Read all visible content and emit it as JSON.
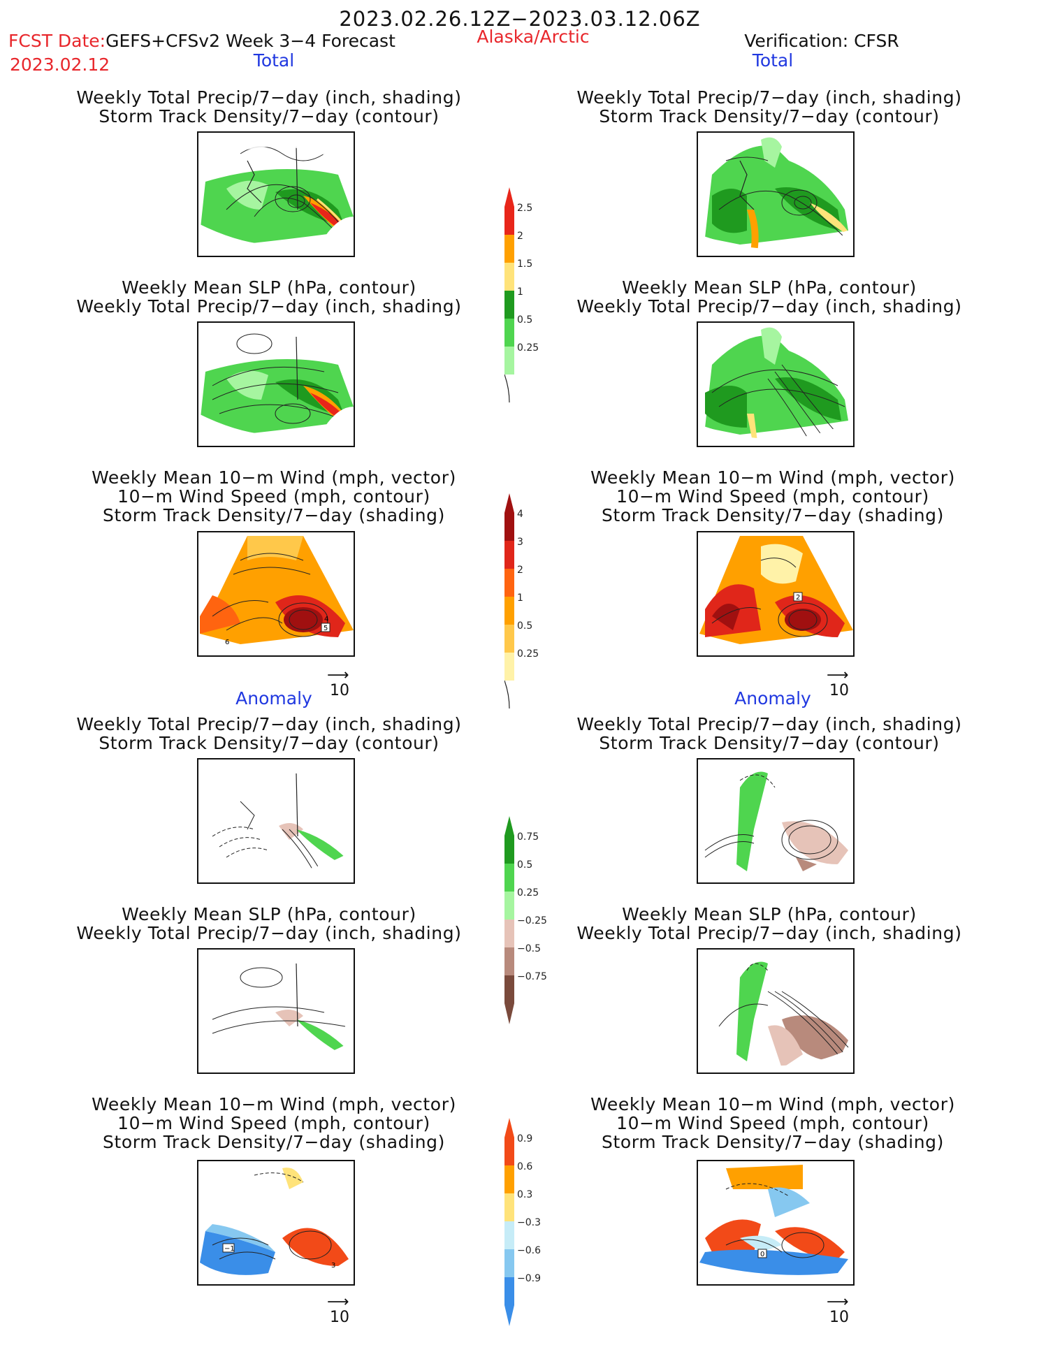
{
  "header": {
    "date_range": "2023.02.26.12Z−2023.03.12.06Z",
    "fcst_label": "FCST Date:",
    "fcst_model": "GEFS+CFSv2 Week 3−4 Forecast",
    "fcst_date": "2023.02.12",
    "region": "Alaska/Arctic",
    "verification": "Verification: CFSR"
  },
  "sections": {
    "total_left": "Total",
    "total_right": "Total",
    "anomaly_left": "Anomaly",
    "anomaly_right": "Anomaly"
  },
  "titles": {
    "precip_line1": "Weekly Total Precip/7−day (inch, shading)",
    "precip_line2": "Storm Track Density/7−day (contour)",
    "slp_line1": "Weekly Mean SLP (hPa, contour)",
    "slp_line2": "Weekly Total Precip/7−day (inch, shading)",
    "wind_line1": "Weekly Mean 10−m Wind (mph, vector)",
    "wind_line2": "10−m Wind Speed (mph, contour)",
    "wind_line3": "Storm Track Density/7−day (shading)"
  },
  "vector_scale": "10",
  "colorbars": {
    "precip_total": {
      "labels": [
        "2.5",
        "2",
        "1.5",
        "1",
        "0.5",
        "0.25"
      ],
      "colors": [
        "#e8261a",
        "#ffa000",
        "#ffe37a",
        "#1f9a1f",
        "#4fd54f",
        "#a6f5a0"
      ]
    },
    "storm_total": {
      "labels": [
        "4",
        "3",
        "2",
        "1",
        "0.5",
        "0.25"
      ],
      "colors": [
        "#a01010",
        "#e0261a",
        "#ff6410",
        "#ffa000",
        "#ffc84a",
        "#fff2a8"
      ]
    },
    "precip_anom": {
      "labels": [
        "0.75",
        "0.5",
        "0.25",
        "−0.25",
        "−0.5",
        "−0.75"
      ],
      "colors": [
        "#1f9a1f",
        "#4fd54f",
        "#a6f5a0",
        "#e6c3b8",
        "#b88a7c",
        "#7a4a3c"
      ]
    },
    "storm_anom": {
      "labels": [
        "0.9",
        "0.6",
        "0.3",
        "−0.3",
        "−0.6",
        "−0.9"
      ],
      "colors": [
        "#f24a18",
        "#ffa000",
        "#ffe37a",
        "#c6ecf7",
        "#86c8f0",
        "#3a8ee8"
      ]
    }
  },
  "map_labels": {
    "wind_total_left_a": "4",
    "wind_total_left_b": "5",
    "wind_total_left_c": "6",
    "wind_total_right_a": "2",
    "wind_anom_left_a": "−1",
    "wind_anom_left_b": "3",
    "wind_anom_right_a": "0"
  }
}
